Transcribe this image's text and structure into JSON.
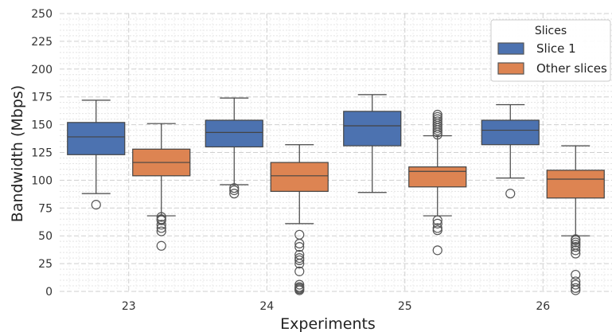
{
  "chart_data": {
    "type": "box",
    "xlabel": "Experiments",
    "ylabel": "Bandwidth (Mbps)",
    "ylim": [
      0,
      250
    ],
    "yticks": [
      "0",
      "25",
      "50",
      "75",
      "100",
      "125",
      "150",
      "175",
      "200",
      "225",
      "250"
    ],
    "categories": [
      "23",
      "24",
      "25",
      "26"
    ],
    "grid": true,
    "legend": {
      "title": "Slices",
      "placement": "top-right"
    },
    "series": [
      {
        "name": "Slice 1",
        "color": "#4c72b0",
        "boxes": [
          {
            "whisker_low": 88,
            "q1": 123,
            "median": 139,
            "q3": 152,
            "whisker_high": 172,
            "outliers": [
              78
            ]
          },
          {
            "whisker_low": 96,
            "q1": 130,
            "median": 143,
            "q3": 154,
            "whisker_high": 174,
            "outliers": [
              93,
              91,
              88
            ]
          },
          {
            "whisker_low": 89,
            "q1": 131,
            "median": 149,
            "q3": 162,
            "whisker_high": 177,
            "outliers": []
          },
          {
            "whisker_low": 102,
            "q1": 132,
            "median": 145,
            "q3": 154,
            "whisker_high": 168,
            "outliers": [
              88
            ]
          }
        ]
      },
      {
        "name": "Other slices",
        "color": "#dd8452",
        "boxes": [
          {
            "whisker_low": 68,
            "q1": 104,
            "median": 116,
            "q3": 128,
            "whisker_high": 151,
            "outliers": [
              67,
              65,
              64,
              60,
              57,
              54,
              41
            ]
          },
          {
            "whisker_low": 61,
            "q1": 90,
            "median": 104,
            "q3": 116,
            "whisker_high": 132,
            "outliers": [
              51,
              43,
              40,
              33,
              30,
              28,
              25,
              18,
              6,
              4,
              3,
              2,
              1
            ]
          },
          {
            "whisker_low": 68,
            "q1": 94,
            "median": 108,
            "q3": 112,
            "whisker_high": 140,
            "outliers": [
              141,
              143,
              145,
              147,
              149,
              151,
              153,
              155,
              157,
              159,
              64,
              61,
              57,
              55,
              37
            ]
          },
          {
            "whisker_low": 50,
            "q1": 84,
            "median": 101,
            "q3": 109,
            "whisker_high": 131,
            "outliers": [
              47,
              46,
              44,
              42,
              40,
              37,
              34,
              15,
              9,
              6,
              3,
              1
            ]
          }
        ]
      }
    ]
  }
}
